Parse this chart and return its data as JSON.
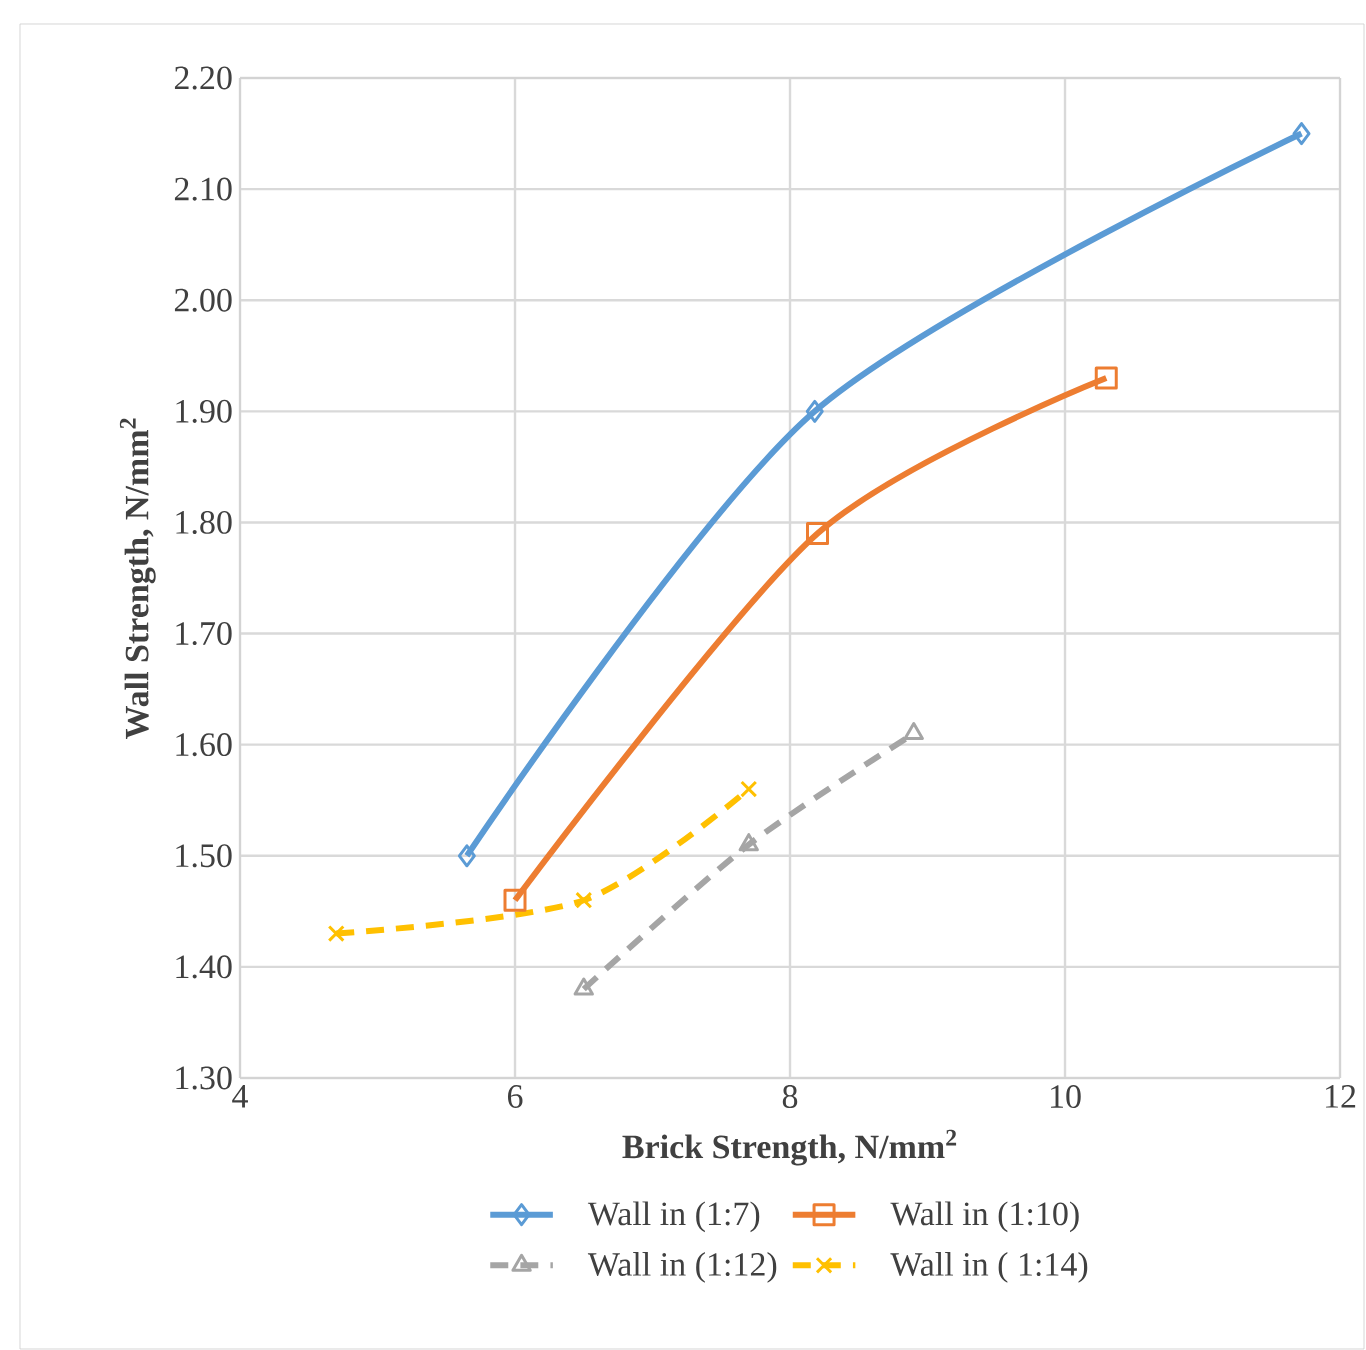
{
  "chart_data": {
    "type": "line",
    "xlabel": "Brick Strength, N/mm$^{2}$",
    "ylabel": "Wall Strength, N/mm$^{2}$",
    "xlim": [
      4,
      12
    ],
    "xticks": [
      4,
      6,
      8,
      10,
      12
    ],
    "ylim": [
      1.3,
      2.2
    ],
    "yticks": [
      {
        "value": 1.3,
        "label": "1.30"
      },
      {
        "value": 1.4,
        "label": "1.40"
      },
      {
        "value": 1.5,
        "label": "1.50"
      },
      {
        "value": 1.6,
        "label": "1.60"
      },
      {
        "value": 1.7,
        "label": "1.70"
      },
      {
        "value": 1.8,
        "label": "1.80"
      },
      {
        "value": 1.9,
        "label": "1.90"
      },
      {
        "value": 2.0,
        "label": "2.00"
      },
      {
        "value": 2.1,
        "label": "2.10"
      },
      {
        "value": 2.2,
        "label": "2.20"
      }
    ],
    "grid": true,
    "legend": "bottom",
    "series": [
      {
        "name": "Wall in (1:7)",
        "color": "#5b9bd5",
        "marker": "diamond",
        "line_style": "solid",
        "x": [
          5.65,
          8.18,
          11.72
        ],
        "values": [
          1.5,
          1.9,
          2.15
        ]
      },
      {
        "name": "Wall in (1:10)",
        "color": "#ed7d31",
        "marker": "square",
        "line_style": "solid",
        "x": [
          6.0,
          8.2,
          10.3
        ],
        "values": [
          1.46,
          1.79,
          1.93
        ]
      },
      {
        "name": "Wall in (1:12)",
        "color": "#a5a5a5",
        "marker": "triangle",
        "line_style": "dashed",
        "x": [
          6.5,
          7.7,
          8.9
        ],
        "values": [
          1.38,
          1.51,
          1.61
        ]
      },
      {
        "name": "Wall in ( 1:14)",
        "color": "#ffc000",
        "marker": "cross",
        "line_style": "dashed",
        "x": [
          4.7,
          6.5,
          7.7
        ],
        "values": [
          1.43,
          1.46,
          1.56
        ]
      }
    ]
  }
}
